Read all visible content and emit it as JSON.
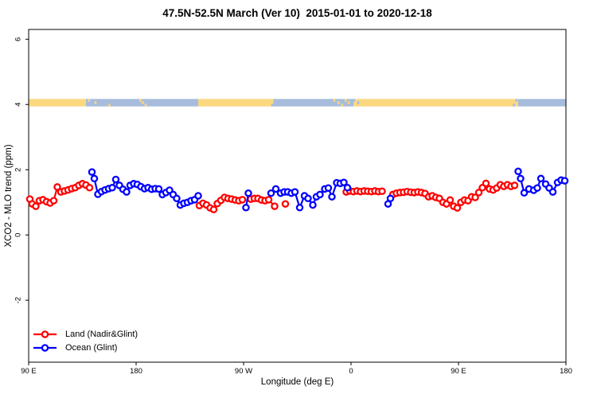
{
  "chart_data": {
    "type": "line",
    "title": "47.5N-52.5N March (Ver 10)  2015-01-01 to 2020-12-18",
    "xlabel": "Longitude (deg E)",
    "ylabel": "XCO2 - MLO trend (ppm)",
    "xlim": [
      90,
      540
    ],
    "ylim": [
      -3.9,
      6.3
    ],
    "grid": false,
    "x_ticks": [
      {
        "value": 90,
        "label": "90 E"
      },
      {
        "value": 180,
        "label": "180"
      },
      {
        "value": 270,
        "label": "90 W"
      },
      {
        "value": 360,
        "label": "0"
      },
      {
        "value": 450,
        "label": "90 E"
      },
      {
        "value": 540,
        "label": "180"
      }
    ],
    "y_ticks": [
      {
        "value": -2,
        "label": "-2"
      },
      {
        "value": 0,
        "label": "0"
      },
      {
        "value": 2,
        "label": "2"
      },
      {
        "value": 4,
        "label": "4"
      },
      {
        "value": 6,
        "label": "6"
      }
    ],
    "legend": {
      "position": "bottom-left",
      "entries": [
        {
          "id": "land",
          "label": "Land (Nadir&Glint)",
          "color": "#ff0000"
        },
        {
          "id": "ocean",
          "label": "Ocean (Glint)",
          "color": "#0000ff"
        }
      ]
    },
    "surface_band": {
      "y_range": [
        3.94,
        4.17
      ],
      "land_color": "#fbd87f",
      "ocean_color": "#a7bcdc",
      "segments": [
        {
          "from": 90,
          "to": 138,
          "type": "land"
        },
        {
          "from": 138,
          "to": 232,
          "type": "ocean"
        },
        {
          "from": 232,
          "to": 295,
          "type": "land"
        },
        {
          "from": 295,
          "to": 362,
          "type": "ocean"
        },
        {
          "from": 362,
          "to": 500,
          "type": "land"
        },
        {
          "from": 500,
          "to": 540,
          "type": "ocean"
        }
      ],
      "speckles": [
        {
          "lon": 140.5,
          "type": "land"
        },
        {
          "lon": 146,
          "type": "land"
        },
        {
          "lon": 157.5,
          "type": "land"
        },
        {
          "lon": 183.5,
          "type": "land"
        },
        {
          "lon": 185.5,
          "type": "land"
        },
        {
          "lon": 188,
          "type": "land"
        },
        {
          "lon": 346,
          "type": "land"
        },
        {
          "lon": 349.5,
          "type": "land"
        },
        {
          "lon": 352.5,
          "type": "land"
        },
        {
          "lon": 355.5,
          "type": "land"
        },
        {
          "lon": 358,
          "type": "land"
        },
        {
          "lon": 294,
          "type": "ocean"
        },
        {
          "lon": 362.5,
          "type": "ocean"
        },
        {
          "lon": 366,
          "type": "ocean"
        },
        {
          "lon": 496.5,
          "type": "ocean"
        },
        {
          "lon": 498.5,
          "type": "ocean"
        }
      ]
    },
    "series": [
      {
        "id": "land",
        "name": "Land (Nadir&Glint)",
        "color": "#ff0000",
        "marker": "open-circle",
        "points": [
          [
            91,
            1.1
          ],
          [
            93,
            0.95
          ],
          [
            96,
            0.88
          ],
          [
            99,
            1.05
          ],
          [
            102,
            1.08
          ],
          [
            105,
            1.02
          ],
          [
            108,
            0.98
          ],
          [
            111,
            1.05
          ],
          [
            114,
            1.47
          ],
          [
            117,
            1.32
          ],
          [
            120,
            1.35
          ],
          [
            123,
            1.38
          ],
          [
            126,
            1.42
          ],
          [
            129,
            1.45
          ],
          [
            132,
            1.52
          ],
          [
            135,
            1.57
          ],
          [
            138,
            1.53
          ],
          [
            141,
            1.45
          ],
          [
            233,
            0.9
          ],
          [
            236,
            0.97
          ],
          [
            239,
            0.92
          ],
          [
            242,
            0.83
          ],
          [
            245,
            0.78
          ],
          [
            248,
            0.96
          ],
          [
            251,
            1.06
          ],
          [
            254,
            1.15
          ],
          [
            257,
            1.12
          ],
          [
            260,
            1.1
          ],
          [
            263,
            1.07
          ],
          [
            266,
            1.05
          ],
          [
            269,
            1.08
          ],
          [
            276,
            1.1
          ],
          [
            279,
            1.12
          ],
          [
            282,
            1.12
          ],
          [
            285,
            1.07
          ],
          [
            288,
            1.05
          ],
          [
            291,
            1.08
          ],
          [
            296,
            0.88
          ],
          [
            305,
            0.95
          ],
          [
            356,
            1.32
          ],
          [
            359,
            1.35
          ],
          [
            362,
            1.33
          ],
          [
            365,
            1.35
          ],
          [
            368,
            1.33
          ],
          [
            371,
            1.35
          ],
          [
            374,
            1.34
          ],
          [
            377,
            1.33
          ],
          [
            380,
            1.35
          ],
          [
            383,
            1.33
          ],
          [
            386,
            1.34
          ],
          [
            395,
            1.24
          ],
          [
            398,
            1.28
          ],
          [
            401,
            1.3
          ],
          [
            404,
            1.31
          ],
          [
            407,
            1.33
          ],
          [
            410,
            1.31
          ],
          [
            413,
            1.3
          ],
          [
            416,
            1.32
          ],
          [
            419,
            1.3
          ],
          [
            422,
            1.27
          ],
          [
            425,
            1.17
          ],
          [
            428,
            1.2
          ],
          [
            431,
            1.15
          ],
          [
            434,
            1.12
          ],
          [
            437,
            1.0
          ],
          [
            440,
            0.95
          ],
          [
            443,
            1.07
          ],
          [
            446,
            0.88
          ],
          [
            449,
            0.83
          ],
          [
            452,
            1.0
          ],
          [
            455,
            1.07
          ],
          [
            458,
            1.05
          ],
          [
            461,
            1.17
          ],
          [
            464,
            1.15
          ],
          [
            467,
            1.3
          ],
          [
            470,
            1.45
          ],
          [
            473,
            1.58
          ],
          [
            476,
            1.41
          ],
          [
            479,
            1.38
          ],
          [
            482,
            1.44
          ],
          [
            485,
            1.54
          ],
          [
            488,
            1.49
          ],
          [
            491,
            1.54
          ],
          [
            494,
            1.49
          ],
          [
            497,
            1.52
          ]
        ]
      },
      {
        "id": "ocean",
        "name": "Ocean (Glint)",
        "color": "#0000ff",
        "marker": "open-circle",
        "points": [
          [
            143,
            1.93
          ],
          [
            145,
            1.73
          ],
          [
            148,
            1.25
          ],
          [
            151,
            1.33
          ],
          [
            154,
            1.38
          ],
          [
            157,
            1.42
          ],
          [
            160,
            1.45
          ],
          [
            163,
            1.7
          ],
          [
            166,
            1.52
          ],
          [
            169,
            1.4
          ],
          [
            172,
            1.32
          ],
          [
            175,
            1.52
          ],
          [
            178,
            1.57
          ],
          [
            181,
            1.55
          ],
          [
            184,
            1.48
          ],
          [
            187,
            1.42
          ],
          [
            190,
            1.45
          ],
          [
            193,
            1.4
          ],
          [
            196,
            1.42
          ],
          [
            199,
            1.41
          ],
          [
            202,
            1.24
          ],
          [
            205,
            1.3
          ],
          [
            208,
            1.37
          ],
          [
            211,
            1.24
          ],
          [
            214,
            1.12
          ],
          [
            217,
            0.92
          ],
          [
            220,
            0.97
          ],
          [
            223,
            1.0
          ],
          [
            226,
            1.05
          ],
          [
            229,
            1.08
          ],
          [
            232,
            1.2
          ],
          [
            272,
            0.84
          ],
          [
            274,
            1.28
          ],
          [
            293,
            1.28
          ],
          [
            297,
            1.41
          ],
          [
            301,
            1.28
          ],
          [
            304,
            1.32
          ],
          [
            307,
            1.32
          ],
          [
            310,
            1.28
          ],
          [
            313,
            1.32
          ],
          [
            317,
            0.84
          ],
          [
            321,
            1.2
          ],
          [
            324,
            1.12
          ],
          [
            328,
            0.92
          ],
          [
            331,
            1.17
          ],
          [
            334,
            1.24
          ],
          [
            338,
            1.41
          ],
          [
            341,
            1.44
          ],
          [
            344,
            1.17
          ],
          [
            348,
            1.6
          ],
          [
            351,
            1.58
          ],
          [
            354,
            1.61
          ],
          [
            357,
            1.45
          ],
          [
            391,
            0.95
          ],
          [
            393,
            1.12
          ],
          [
            500,
            1.95
          ],
          [
            502,
            1.73
          ],
          [
            505,
            1.29
          ],
          [
            509,
            1.41
          ],
          [
            513,
            1.37
          ],
          [
            516,
            1.44
          ],
          [
            519,
            1.73
          ],
          [
            523,
            1.56
          ],
          [
            526,
            1.44
          ],
          [
            529,
            1.32
          ],
          [
            533,
            1.61
          ],
          [
            536,
            1.68
          ],
          [
            539,
            1.66
          ]
        ]
      }
    ]
  }
}
